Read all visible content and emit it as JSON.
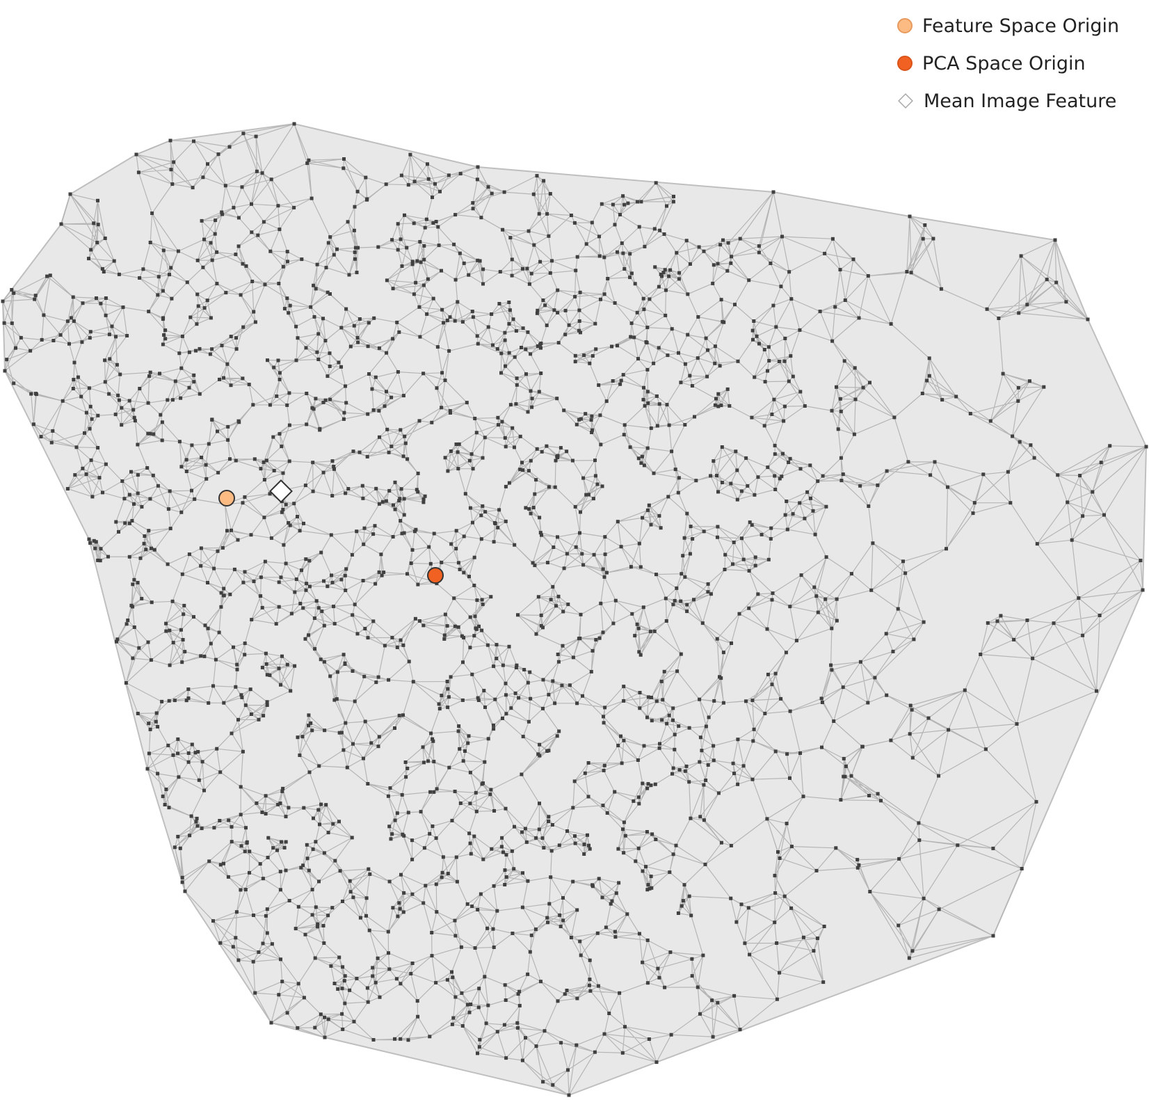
{
  "legend": {
    "placement": "top-right",
    "items": [
      {
        "label": "Feature Space Origin",
        "marker": "circle",
        "color": "#fdbb84",
        "edge": "#e69a5e"
      },
      {
        "label": "PCA Space Origin",
        "marker": "circle",
        "color": "#f16122",
        "edge": "#d9541b"
      },
      {
        "label": "Mean Image Feature",
        "marker": "diamond",
        "color": "#ffffff",
        "edge": "#aaaaaa"
      }
    ]
  },
  "colors": {
    "hull_fill": "#e8e8e8",
    "hull_edge": "#bfbfbf",
    "mesh_edge": "#b5b5b5",
    "node": "#404040",
    "background": "#ffffff"
  },
  "markers": {
    "feature_space_origin": {
      "color": "#fdbb84",
      "edge": "#333333"
    },
    "pca_space_origin": {
      "color": "#f16122",
      "edge": "#333333"
    },
    "mean_image_feature": {
      "color": "#ffffff",
      "edge": "#333333"
    }
  }
}
